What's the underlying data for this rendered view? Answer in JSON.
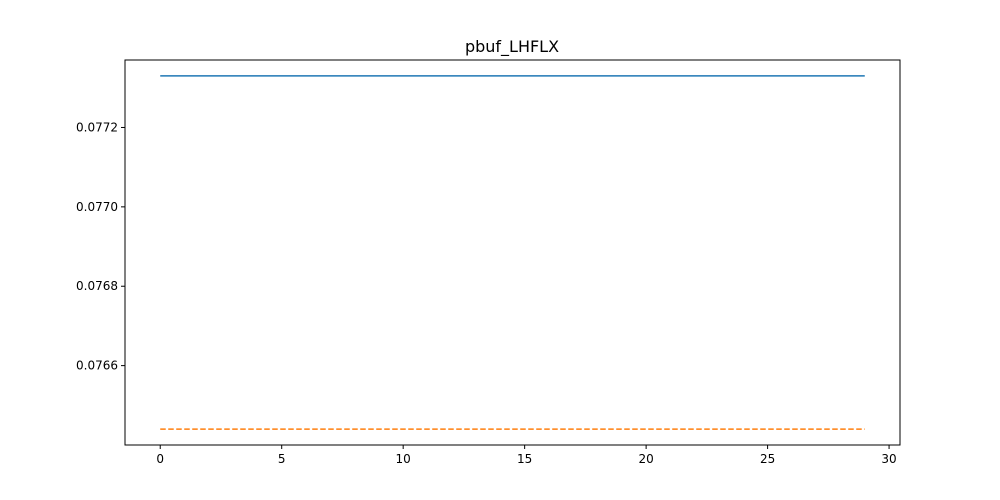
{
  "chart_data": {
    "type": "line",
    "title": "pbuf_LHFLX",
    "xlabel": "",
    "ylabel": "",
    "xlim": [
      -1.45,
      30.45
    ],
    "ylim": [
      0.0764,
      0.07737
    ],
    "xticks": [
      0,
      5,
      10,
      15,
      20,
      25,
      30
    ],
    "xtick_labels": [
      "0",
      "5",
      "10",
      "15",
      "20",
      "25",
      "30"
    ],
    "yticks": [
      0.0766,
      0.0768,
      0.077,
      0.0772
    ],
    "ytick_labels": [
      "0.0766",
      "0.0768",
      "0.0770",
      "0.0772"
    ],
    "grid": false,
    "legend": false,
    "series": [
      {
        "x": [
          0,
          29
        ],
        "y": [
          0.07733,
          0.07733
        ],
        "color": "#1f77b4",
        "style": "solid"
      },
      {
        "x": [
          0,
          29
        ],
        "y": [
          0.07644,
          0.07644
        ],
        "color": "#ff7f0e",
        "style": "dashed"
      }
    ]
  }
}
